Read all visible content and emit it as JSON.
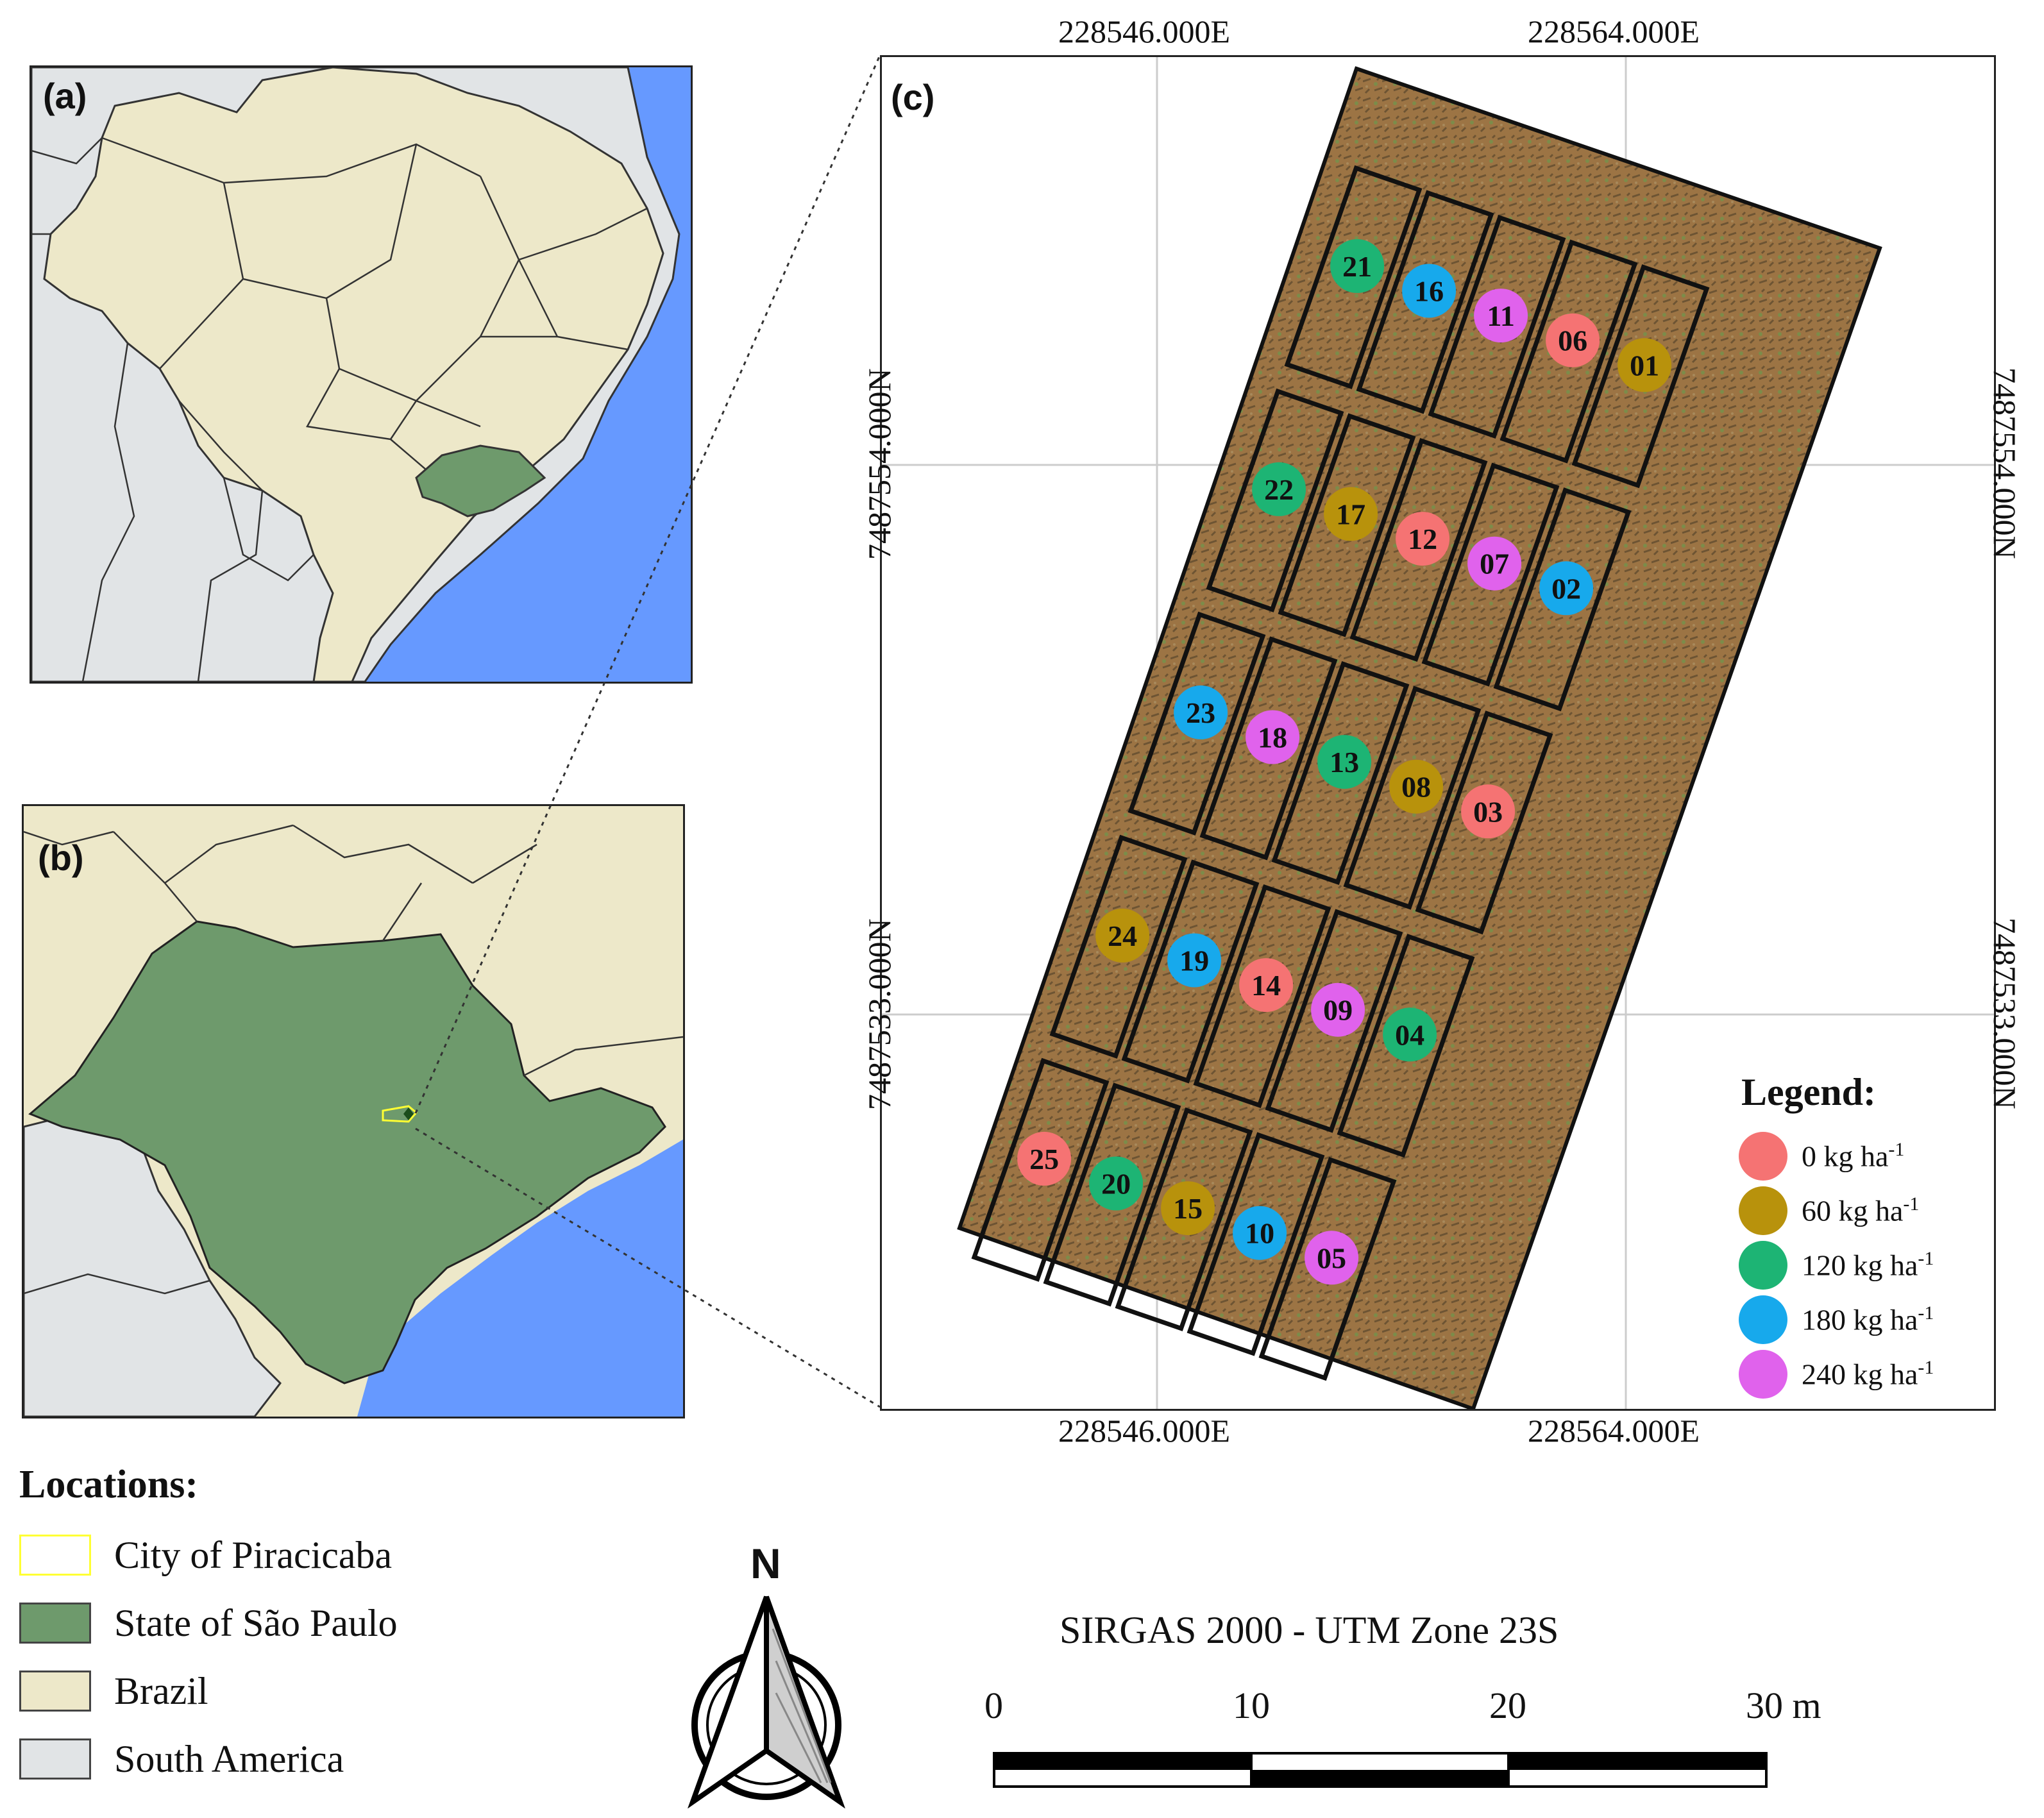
{
  "panels": {
    "a_label": "(a)",
    "b_label": "(b)",
    "c_label": "(c)"
  },
  "coords": {
    "top_e_1": "228546.000E",
    "top_e_2": "228564.000E",
    "bottom_e_1": "228546.000E",
    "bottom_e_2": "228564.000E",
    "left_n_1": "7487554.000N",
    "left_n_2": "7487533.000N",
    "right_n_1": "7487554.000N",
    "right_n_2": "7487533.000N"
  },
  "colors": {
    "ocean": "#6699ff",
    "south_america": "#e1e4e6",
    "brazil": "#ede8c9",
    "sao_paulo": "#6e9a6c",
    "piracicaba": "#ffff33",
    "field": "#9c7444",
    "rate_0": "#f57373",
    "rate_60": "#b8920c",
    "rate_120": "#1db474",
    "rate_180": "#17a9ec",
    "rate_240": "#e062ec"
  },
  "plots": {
    "rows": [
      [
        "21",
        "16",
        "11",
        "06",
        "01"
      ],
      [
        "22",
        "17",
        "12",
        "07",
        "02"
      ],
      [
        "23",
        "18",
        "13",
        "08",
        "03"
      ],
      [
        "24",
        "19",
        "14",
        "09",
        "04"
      ],
      [
        "25",
        "20",
        "15",
        "10",
        "05"
      ]
    ],
    "rate_by_plot": {
      "01": "60",
      "02": "180",
      "03": "0",
      "04": "120",
      "05": "240",
      "06": "0",
      "07": "240",
      "08": "60",
      "09": "240",
      "10": "180",
      "11": "240",
      "12": "0",
      "13": "120",
      "14": "0",
      "15": "60",
      "16": "180",
      "17": "60",
      "18": "240",
      "19": "180",
      "20": "120",
      "21": "120",
      "22": "120",
      "23": "180",
      "24": "60",
      "25": "0"
    }
  },
  "legend": {
    "title": "Legend:",
    "items": [
      {
        "rate": "0",
        "label": "0 kg ha",
        "sup": "-1"
      },
      {
        "rate": "60",
        "label": "60 kg ha",
        "sup": "-1"
      },
      {
        "rate": "120",
        "label": "120 kg ha",
        "sup": "-1"
      },
      {
        "rate": "180",
        "label": "180 kg ha",
        "sup": "-1"
      },
      {
        "rate": "240",
        "label": "240 kg ha",
        "sup": "-1"
      }
    ]
  },
  "locations": {
    "title": "Locations:",
    "piracicaba": "City of Piracicaba",
    "sao_paulo": "State of São Paulo",
    "brazil": "Brazil",
    "south_america": "South America"
  },
  "north_arrow": {
    "label": "N"
  },
  "scale_bar": {
    "crs": "SIRGAS 2000 - UTM Zone 23S",
    "ticks": [
      "0",
      "10",
      "20",
      "30 m"
    ]
  }
}
